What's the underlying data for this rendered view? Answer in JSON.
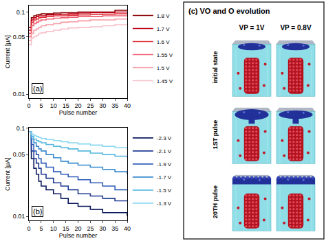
{
  "chart_data": [
    {
      "type": "line",
      "panel_label": "(a)",
      "x_label": "Pulse number",
      "y_label": "Current [μA]",
      "log": "y",
      "grid": false,
      "legend": "right",
      "xlim": [
        0,
        40
      ],
      "xticks": [
        0,
        5,
        10,
        15,
        20,
        25,
        30,
        35,
        40
      ],
      "ylim": [
        0.009,
        0.12
      ],
      "yticks": [
        0.01,
        0.05,
        0.1
      ],
      "x": [
        0,
        1,
        2,
        3,
        4,
        5,
        7,
        10,
        13,
        16,
        20,
        25,
        30,
        35,
        40
      ],
      "series": [
        {
          "name": "1.8 V",
          "color": "#8b0000",
          "values": [
            0.065,
            0.085,
            0.09,
            0.092,
            0.093,
            0.095,
            0.095,
            0.097,
            0.098,
            0.098,
            0.1,
            0.1,
            0.1,
            0.105,
            0.105
          ]
        },
        {
          "name": "1.7 V",
          "color": "#c0001a",
          "values": [
            0.06,
            0.08,
            0.085,
            0.088,
            0.09,
            0.09,
            0.092,
            0.093,
            0.094,
            0.095,
            0.097,
            0.098,
            0.098,
            0.1,
            0.1
          ]
        },
        {
          "name": "1.6 V",
          "color": "#e0303a",
          "values": [
            0.055,
            0.075,
            0.08,
            0.082,
            0.085,
            0.086,
            0.088,
            0.09,
            0.09,
            0.091,
            0.092,
            0.093,
            0.094,
            0.095,
            0.095
          ]
        },
        {
          "name": "1.55 V",
          "color": "#f06070",
          "values": [
            0.05,
            0.068,
            0.072,
            0.075,
            0.078,
            0.08,
            0.082,
            0.084,
            0.085,
            0.086,
            0.088,
            0.088,
            0.09,
            0.09,
            0.09
          ]
        },
        {
          "name": "1.5 V",
          "color": "#f59aa5",
          "values": [
            0.045,
            0.055,
            0.06,
            0.062,
            0.065,
            0.068,
            0.07,
            0.072,
            0.075,
            0.076,
            0.078,
            0.08,
            0.08,
            0.082,
            0.082
          ]
        },
        {
          "name": "1.45 V",
          "color": "#f8c0c8",
          "values": [
            0.04,
            0.048,
            0.05,
            0.052,
            0.055,
            0.056,
            0.058,
            0.06,
            0.062,
            0.064,
            0.065,
            0.066,
            0.068,
            0.07,
            0.07
          ]
        }
      ]
    },
    {
      "type": "line",
      "panel_label": "(b)",
      "x_label": "Pulse number",
      "y_label": "Current [μA]",
      "log": "y",
      "grid": false,
      "legend": "right",
      "xlim": [
        0,
        40
      ],
      "xticks": [
        0,
        5,
        10,
        15,
        20,
        25,
        30,
        35,
        40
      ],
      "ylim": [
        0.009,
        0.1
      ],
      "yticks": [
        0.01,
        0.05,
        0.1
      ],
      "x": [
        0,
        1,
        2,
        3,
        4,
        5,
        7,
        10,
        13,
        16,
        20,
        25,
        30,
        35,
        40
      ],
      "series": [
        {
          "name": "-2.3 V",
          "color": "#0a1a5c",
          "values": [
            0.09,
            0.045,
            0.035,
            0.03,
            0.025,
            0.022,
            0.02,
            0.018,
            0.016,
            0.014,
            0.013,
            0.012,
            0.011,
            0.011,
            0.01
          ]
        },
        {
          "name": "-2.1 V",
          "color": "#1f3a93",
          "values": [
            0.09,
            0.055,
            0.045,
            0.04,
            0.035,
            0.03,
            0.027,
            0.024,
            0.022,
            0.02,
            0.018,
            0.017,
            0.016,
            0.015,
            0.015
          ]
        },
        {
          "name": "-1.9 V",
          "color": "#2e5cb8",
          "values": [
            0.09,
            0.065,
            0.055,
            0.05,
            0.045,
            0.04,
            0.036,
            0.032,
            0.03,
            0.028,
            0.026,
            0.024,
            0.022,
            0.02,
            0.02
          ]
        },
        {
          "name": "-1.7 V",
          "color": "#3a8ad0",
          "values": [
            0.09,
            0.075,
            0.068,
            0.062,
            0.058,
            0.055,
            0.05,
            0.046,
            0.042,
            0.04,
            0.038,
            0.036,
            0.034,
            0.032,
            0.03
          ]
        },
        {
          "name": "-1.5 V",
          "color": "#57b8e0",
          "values": [
            0.09,
            0.08,
            0.075,
            0.072,
            0.07,
            0.068,
            0.065,
            0.062,
            0.06,
            0.058,
            0.055,
            0.052,
            0.05,
            0.048,
            0.046
          ]
        },
        {
          "name": "-1.3 V",
          "color": "#8ad8f0",
          "values": [
            0.09,
            0.085,
            0.082,
            0.08,
            0.078,
            0.076,
            0.074,
            0.072,
            0.07,
            0.068,
            0.066,
            0.064,
            0.062,
            0.06,
            0.058
          ]
        }
      ]
    }
  ],
  "panel_c": {
    "title": "(c) VO and O evolution",
    "columns": [
      "VP = 1V",
      "VP = 0.8V"
    ],
    "rows": [
      "initial state",
      "1ST pulse",
      "20TH pulse"
    ]
  }
}
